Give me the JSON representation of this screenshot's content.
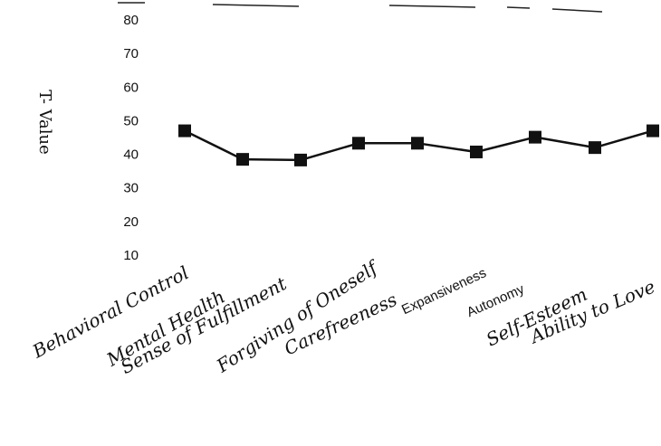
{
  "chart_data": {
    "type": "line",
    "ylabel": "T- Value",
    "ylim": [
      10,
      80
    ],
    "yticks": [
      80,
      70,
      60,
      50,
      40,
      30,
      20,
      10
    ],
    "categories": [
      "Behavioral Control",
      "Mental Health",
      "Sense of Fulfillment",
      "Forgiving of Oneself",
      "Carefreeness",
      "Expansiveness",
      "Autonomy",
      "Self-Esteem",
      "Ability to Love"
    ],
    "values": [
      47,
      38.5,
      38.3,
      43.3,
      43.3,
      40.7,
      45.1,
      42,
      47
    ],
    "grid": false,
    "legend": "none",
    "colors": {
      "line": "#111111",
      "marker": "#111111",
      "text": "#111111"
    }
  }
}
